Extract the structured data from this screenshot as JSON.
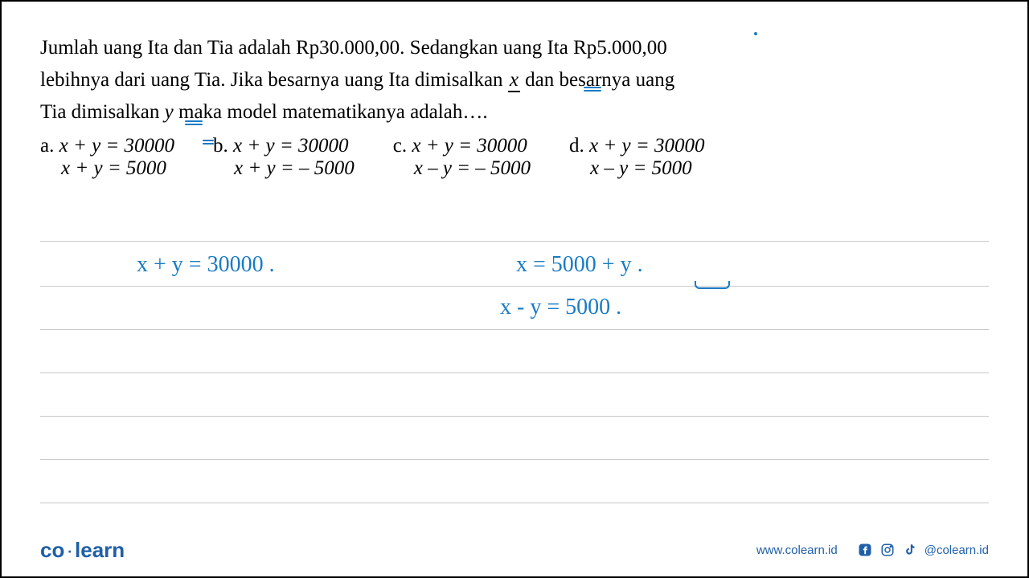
{
  "question": {
    "line1_pre": "Jumlah uang Ita dan Tia adalah Rp30.000,00. Sedangkan uang Ita Rp5.000,00",
    "line2_pre": "lebihnya  dari uang Tia. Jika besarnya uang Ita dimisalkan ",
    "line2_var": "x",
    "line2_post": " dan besarnya uang",
    "line3_pre": "Tia dimisalkan  ",
    "line3_var": "y",
    "line3_post": " maka model matematikanya  adalah…."
  },
  "options": {
    "a": {
      "label": "a.",
      "eq1": "x + y = 30000",
      "eq2": "x + y = 5000"
    },
    "b": {
      "label": "b.",
      "eq1": "x + y = 30000",
      "eq2": "x + y = – 5000"
    },
    "c": {
      "label": "c.",
      "eq1": "x + y = 30000",
      "eq2": "x – y = – 5000"
    },
    "d": {
      "label": "d.",
      "eq1": "x + y = 30000",
      "eq2": "x – y = 5000"
    }
  },
  "handwritten": {
    "eq1": "x + y  =  30000 .",
    "eq2": "x   =   5000 + y .",
    "eq3": "x - y  =  5000 ."
  },
  "layout": {
    "rule_positions": [
      298,
      354,
      408,
      462,
      516,
      570,
      624
    ],
    "colors": {
      "text": "#000000",
      "handwritten": "#1a7bc4",
      "rule": "#c9c9c9",
      "brand": "#1f5fa8",
      "background": "#ffffff"
    }
  },
  "footer": {
    "logo_pre": "co",
    "logo_post": "learn",
    "url": "www.colearn.id",
    "handle": "@colearn.id"
  }
}
